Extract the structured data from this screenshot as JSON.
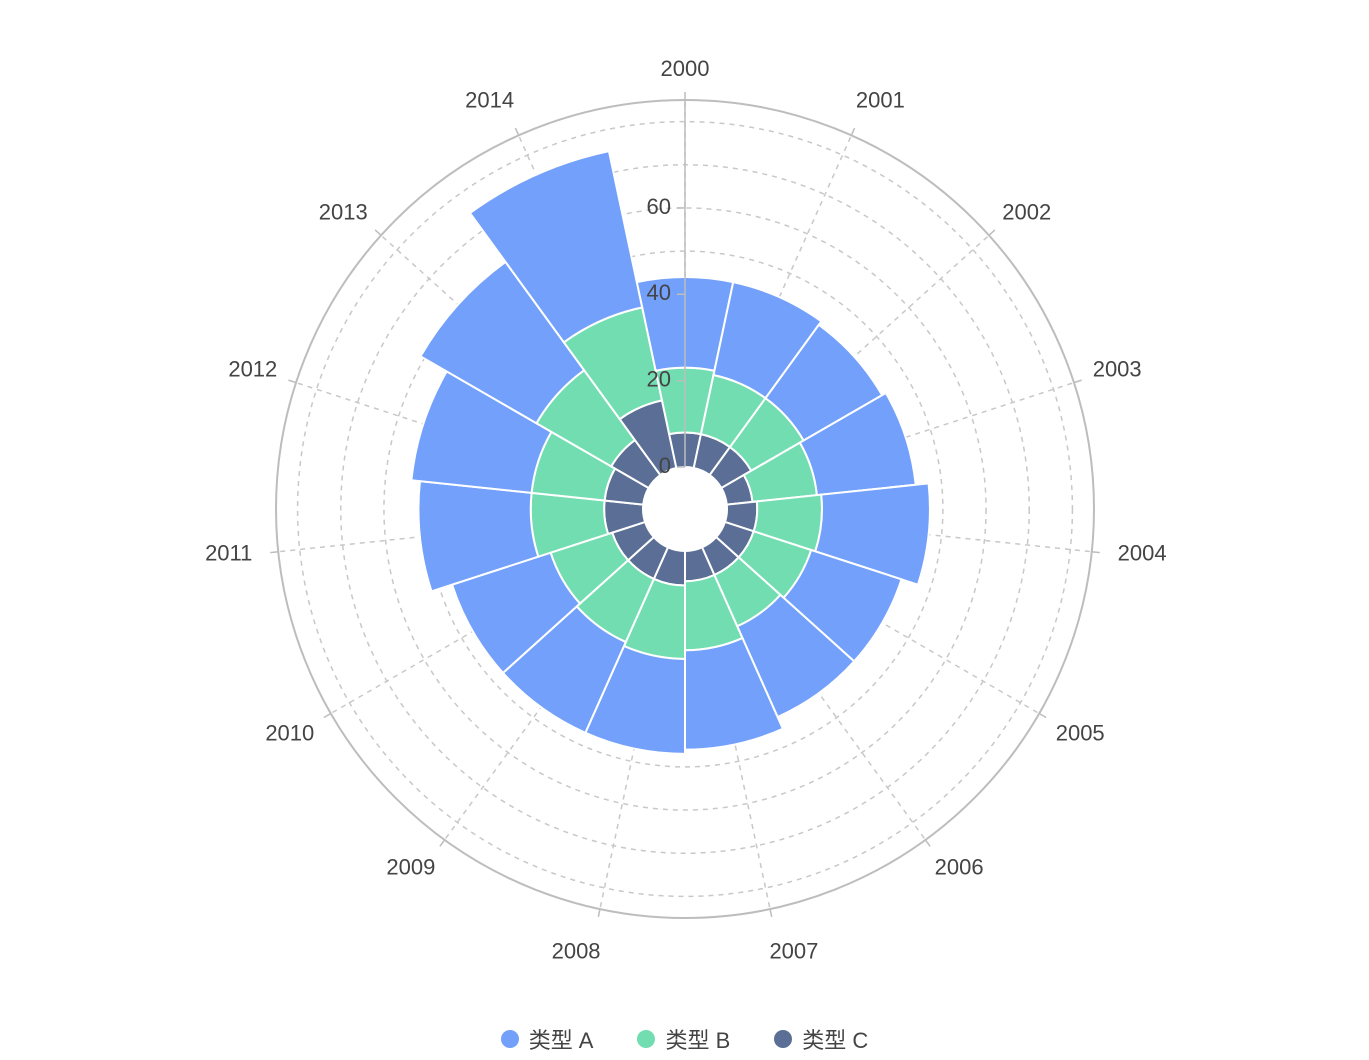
{
  "chart_data": {
    "type": "polar-stacked-bar",
    "title": "",
    "angle_axis": {
      "categories": [
        "2000",
        "2001",
        "2002",
        "2003",
        "2004",
        "2005",
        "2006",
        "2007",
        "2008",
        "2009",
        "2010",
        "2011",
        "2012",
        "2013",
        "2014"
      ]
    },
    "radius_axis": {
      "min": 0,
      "max": 85,
      "ticks": [
        0,
        20,
        40,
        60
      ],
      "tick_labels": [
        "0",
        "20",
        "40",
        "60"
      ],
      "grid": true
    },
    "legend": {
      "position": "bottom"
    },
    "series": [
      {
        "name": "类型 C",
        "color": "#5B6E96",
        "values": [
          8,
          8,
          8,
          6,
          7,
          7,
          7,
          7,
          8,
          8,
          8,
          9,
          9,
          10,
          16
        ]
      },
      {
        "name": "类型 B",
        "color": "#73DDB2",
        "values": [
          15,
          14,
          14,
          15,
          15,
          14,
          13,
          16,
          17,
          16,
          15,
          17,
          17,
          20,
          22
        ]
      },
      {
        "name": "类型 A",
        "color": "#73A0FA",
        "values": [
          21,
          22,
          21,
          23,
          25,
          22,
          23,
          23,
          22,
          23,
          24,
          26,
          28,
          31,
          37
        ]
      }
    ]
  }
}
